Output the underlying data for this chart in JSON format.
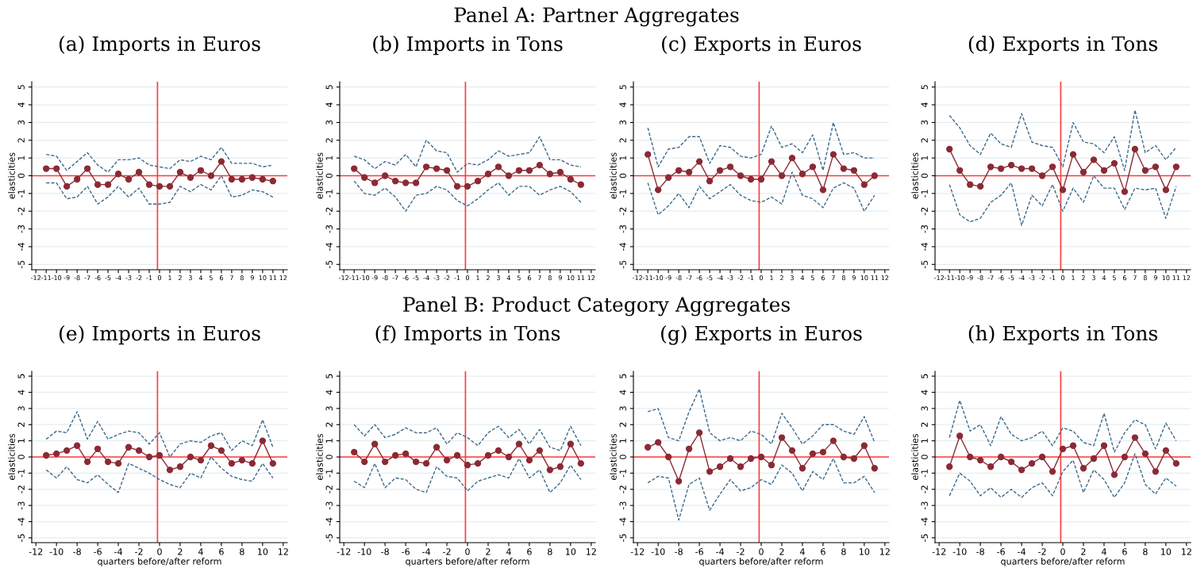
{
  "chart_data": [
    {
      "type": "line",
      "title": "(a) Imports in Euros",
      "ylabel": "elasticities",
      "annotations": [
        "Panel A: Partner Aggregates"
      ],
      "x": [
        -11,
        -10,
        -9,
        -8,
        -7,
        -6,
        -5,
        -4,
        -3,
        -2,
        -1,
        0,
        1,
        2,
        3,
        4,
        5,
        6,
        7,
        8,
        9,
        10,
        11
      ],
      "xlim": [
        -12.4,
        12.4
      ],
      "ylim": [
        -5.3,
        5.3
      ],
      "xticks": [
        -12,
        -11,
        -10,
        -9,
        -8,
        -7,
        -6,
        -5,
        -4,
        -3,
        -2,
        -1,
        0,
        1,
        2,
        3,
        4,
        5,
        6,
        7,
        8,
        9,
        10,
        11,
        12
      ],
      "yticks": [
        -5,
        -4,
        -3,
        -2,
        -1,
        0,
        1,
        2,
        3,
        4,
        5
      ],
      "grid": "y",
      "ref_lines": [
        {
          "axis": "x",
          "value": -0.2,
          "color": "#ff3b3b"
        },
        {
          "axis": "y",
          "value": 0,
          "color": "#ff3b3b"
        }
      ],
      "series": [
        {
          "color": "#8b2a35",
          "marker": "circle",
          "line_style": "solid",
          "values": [
            0.4,
            0.4,
            -0.6,
            -0.2,
            0.4,
            -0.5,
            -0.5,
            0.1,
            -0.2,
            0.2,
            -0.5,
            -0.6,
            -0.6,
            0.2,
            -0.1,
            0.3,
            0,
            0.8,
            -0.2,
            -0.2,
            -0.1,
            -0.2,
            -0.3
          ]
        },
        {
          "color": "#3e6a8a",
          "marker": "none",
          "line_style": "dashed",
          "values": [
            1.2,
            1.1,
            0.3,
            0.8,
            1.3,
            0.6,
            0.2,
            0.9,
            0.9,
            1.0,
            0.6,
            0.5,
            0.4,
            0.9,
            0.8,
            1.1,
            0.9,
            1.6,
            0.7,
            0.7,
            0.7,
            0.5,
            0.6
          ]
        },
        {
          "color": "#3e6a8a",
          "marker": "none",
          "line_style": "dashed",
          "values": [
            -0.4,
            -0.4,
            -1.3,
            -1.2,
            -0.6,
            -1.6,
            -1.2,
            -0.6,
            -1.2,
            -0.7,
            -1.6,
            -1.6,
            -1.5,
            -0.6,
            -0.9,
            -0.5,
            -0.8,
            0,
            -1.2,
            -1.1,
            -0.8,
            -0.9,
            -1.2
          ]
        }
      ]
    },
    {
      "type": "line",
      "title": "(b) Imports in Tons",
      "ylabel": "elasticities",
      "x": [
        -11,
        -10,
        -9,
        -8,
        -7,
        -6,
        -5,
        -4,
        -3,
        -2,
        -1,
        0,
        1,
        2,
        3,
        4,
        5,
        6,
        7,
        8,
        9,
        10,
        11
      ],
      "xlim": [
        -12.4,
        12.4
      ],
      "ylim": [
        -5.3,
        5.3
      ],
      "xticks": [
        -12,
        -11,
        -10,
        -9,
        -8,
        -7,
        -6,
        -5,
        -4,
        -3,
        -2,
        -1,
        0,
        1,
        2,
        3,
        4,
        5,
        6,
        7,
        8,
        9,
        10,
        11,
        12
      ],
      "yticks": [
        -5,
        -4,
        -3,
        -2,
        -1,
        0,
        1,
        2,
        3,
        4,
        5
      ],
      "grid": "y",
      "ref_lines": [
        {
          "axis": "x",
          "value": -0.2,
          "color": "#ff3b3b"
        },
        {
          "axis": "y",
          "value": 0,
          "color": "#ff3b3b"
        }
      ],
      "series": [
        {
          "color": "#8b2a35",
          "marker": "circle",
          "line_style": "solid",
          "values": [
            0.4,
            -0.1,
            -0.4,
            0,
            -0.3,
            -0.4,
            -0.4,
            0.5,
            0.4,
            0.3,
            -0.6,
            -0.6,
            -0.3,
            0.1,
            0.5,
            0,
            0.3,
            0.3,
            0.6,
            0.1,
            0.2,
            -0.2,
            -0.5
          ]
        },
        {
          "color": "#3e6a8a",
          "marker": "none",
          "line_style": "dashed",
          "values": [
            1.1,
            0.9,
            0.4,
            0.8,
            0.6,
            1.2,
            0.5,
            2.0,
            1.4,
            1.3,
            0.2,
            0.7,
            0.6,
            0.9,
            1.4,
            1.1,
            1.2,
            1.3,
            2.2,
            0.9,
            0.9,
            0.6,
            0.5
          ]
        },
        {
          "color": "#3e6a8a",
          "marker": "none",
          "line_style": "dashed",
          "values": [
            -0.3,
            -1.0,
            -1.1,
            -0.7,
            -1.2,
            -2.0,
            -1.1,
            -1.0,
            -0.6,
            -0.8,
            -1.4,
            -1.7,
            -1.3,
            -0.8,
            -0.4,
            -1.1,
            -0.6,
            -0.6,
            -1.1,
            -0.8,
            -0.6,
            -0.9,
            -1.5
          ]
        }
      ]
    },
    {
      "type": "line",
      "title": "(c) Exports in Euros",
      "ylabel": "elasticities",
      "x": [
        -11,
        -10,
        -9,
        -8,
        -7,
        -6,
        -5,
        -4,
        -3,
        -2,
        -1,
        0,
        1,
        2,
        3,
        4,
        5,
        6,
        7,
        8,
        9,
        10,
        11
      ],
      "xlim": [
        -12.4,
        12.4
      ],
      "ylim": [
        -5.3,
        5.3
      ],
      "xticks": [
        -12,
        -11,
        -10,
        -9,
        -8,
        -7,
        -6,
        -5,
        -4,
        -3,
        -2,
        -1,
        0,
        1,
        2,
        3,
        4,
        5,
        6,
        7,
        8,
        9,
        10,
        11,
        12
      ],
      "yticks": [
        -5,
        -4,
        -3,
        -2,
        -1,
        0,
        1,
        2,
        3,
        4,
        5
      ],
      "grid": "y",
      "ref_lines": [
        {
          "axis": "x",
          "value": -0.2,
          "color": "#ff3b3b"
        },
        {
          "axis": "y",
          "value": 0,
          "color": "#ff3b3b"
        }
      ],
      "series": [
        {
          "color": "#8b2a35",
          "marker": "circle",
          "line_style": "solid",
          "values": [
            1.2,
            -0.8,
            -0.1,
            0.3,
            0.2,
            0.8,
            -0.3,
            0.3,
            0.5,
            0,
            -0.2,
            -0.2,
            0.8,
            0,
            1.0,
            0.1,
            0.5,
            -0.8,
            1.2,
            0.4,
            0.3,
            -0.5,
            0
          ]
        },
        {
          "color": "#3e6a8a",
          "marker": "none",
          "line_style": "dashed",
          "values": [
            2.7,
            0.5,
            1.5,
            1.6,
            2.2,
            2.2,
            0.7,
            1.7,
            1.6,
            1.1,
            1.0,
            1.2,
            2.8,
            1.6,
            1.8,
            1.3,
            2.3,
            0.3,
            3.0,
            1.2,
            1.3,
            1.0,
            1.0
          ]
        },
        {
          "color": "#3e6a8a",
          "marker": "none",
          "line_style": "dashed",
          "values": [
            -0.4,
            -2.2,
            -1.7,
            -1.0,
            -1.8,
            -0.6,
            -1.3,
            -0.9,
            -0.5,
            -1.1,
            -1.4,
            -1.5,
            -1.2,
            -1.6,
            0.2,
            -1.1,
            -1.3,
            -1.8,
            -0.7,
            -0.4,
            -0.7,
            -2.0,
            -1.1
          ]
        }
      ]
    },
    {
      "type": "line",
      "title": "(d) Exports in Tons",
      "ylabel": "elasticities",
      "x": [
        -11,
        -10,
        -9,
        -8,
        -7,
        -6,
        -5,
        -4,
        -3,
        -2,
        -1,
        0,
        1,
        2,
        3,
        4,
        5,
        6,
        7,
        8,
        9,
        10,
        11
      ],
      "xlim": [
        -12.4,
        12.4
      ],
      "ylim": [
        -5.3,
        5.3
      ],
      "xticks": [
        -12,
        -11,
        -10,
        -9,
        -8,
        -7,
        -6,
        -5,
        -4,
        -3,
        -2,
        -1,
        0,
        1,
        2,
        3,
        4,
        5,
        6,
        7,
        8,
        9,
        10,
        11,
        12
      ],
      "yticks": [
        -5,
        -4,
        -3,
        -2,
        -1,
        0,
        1,
        2,
        3,
        4,
        5
      ],
      "grid": "y",
      "ref_lines": [
        {
          "axis": "x",
          "value": -0.2,
          "color": "#ff3b3b"
        },
        {
          "axis": "y",
          "value": 0,
          "color": "#ff3b3b"
        }
      ],
      "series": [
        {
          "color": "#8b2a35",
          "marker": "circle",
          "line_style": "solid",
          "values": [
            1.5,
            0.3,
            -0.5,
            -0.6,
            0.5,
            0.4,
            0.6,
            0.4,
            0.4,
            0,
            0.5,
            -0.8,
            1.2,
            0.2,
            0.9,
            0.3,
            0.7,
            -0.9,
            1.5,
            0.3,
            0.5,
            -0.8,
            0.5
          ]
        },
        {
          "color": "#3e6a8a",
          "marker": "none",
          "line_style": "dashed",
          "values": [
            3.4,
            2.7,
            1.7,
            1.2,
            2.4,
            1.8,
            1.6,
            3.5,
            1.9,
            1.7,
            1.6,
            0.5,
            3.0,
            1.9,
            1.8,
            1.3,
            2.2,
            0.3,
            3.7,
            1.3,
            1.7,
            0.9,
            1.6
          ]
        },
        {
          "color": "#3e6a8a",
          "marker": "none",
          "line_style": "dashed",
          "values": [
            -0.5,
            -2.2,
            -2.6,
            -2.4,
            -1.5,
            -1.1,
            -0.4,
            -2.8,
            -1.1,
            -1.7,
            -0.5,
            -2.0,
            -0.7,
            -1.5,
            0,
            -0.7,
            -0.7,
            -1.9,
            -0.7,
            -0.8,
            -0.7,
            -2.4,
            -0.6
          ]
        }
      ]
    },
    {
      "type": "line",
      "title": "(e) Imports in Euros",
      "xlabel": "quarters before/after reform",
      "ylabel": "elasticities",
      "annotations": [
        "Panel B: Product Category Aggregates"
      ],
      "x": [
        -11,
        -10,
        -9,
        -8,
        -7,
        -6,
        -5,
        -4,
        -3,
        -2,
        -1,
        0,
        1,
        2,
        3,
        4,
        5,
        6,
        7,
        8,
        9,
        10,
        11
      ],
      "xlim": [
        -12.4,
        12.4
      ],
      "ylim": [
        -5.3,
        5.3
      ],
      "xticks": [
        -12,
        -10,
        -8,
        -6,
        -4,
        -2,
        0,
        2,
        4,
        6,
        8,
        10,
        12
      ],
      "yticks": [
        -5,
        -4,
        -3,
        -2,
        -1,
        0,
        1,
        2,
        3,
        4,
        5
      ],
      "grid": "y",
      "ref_lines": [
        {
          "axis": "x",
          "value": -0.2,
          "color": "#ff3b3b"
        },
        {
          "axis": "y",
          "value": 0,
          "color": "#ff3b3b"
        }
      ],
      "series": [
        {
          "color": "#8b2a35",
          "marker": "circle",
          "line_style": "solid",
          "values": [
            0.1,
            0.2,
            0.4,
            0.7,
            -0.3,
            0.5,
            -0.3,
            -0.4,
            0.6,
            0.4,
            0,
            0.1,
            -0.8,
            -0.6,
            0,
            -0.2,
            0.7,
            0.4,
            -0.4,
            -0.2,
            -0.4,
            1.0,
            -0.4
          ]
        },
        {
          "color": "#3e6a8a",
          "marker": "none",
          "line_style": "dashed",
          "values": [
            1.1,
            1.6,
            1.5,
            2.8,
            1.1,
            2.2,
            1.1,
            1.4,
            1.6,
            1.5,
            0.8,
            1.5,
            0,
            0.8,
            1.0,
            0.9,
            1.3,
            1.5,
            0.4,
            1.0,
            0.7,
            2.3,
            0.6
          ]
        },
        {
          "color": "#3e6a8a",
          "marker": "none",
          "line_style": "dashed",
          "values": [
            -0.8,
            -1.3,
            -0.6,
            -1.4,
            -1.6,
            -1.1,
            -1.7,
            -2.2,
            -0.4,
            -0.7,
            -1.0,
            -1.4,
            -1.7,
            -1.9,
            -1.0,
            -1.3,
            0,
            -0.7,
            -1.2,
            -1.4,
            -1.5,
            -0.4,
            -1.3
          ]
        }
      ]
    },
    {
      "type": "line",
      "title": "(f) Imports in Tons",
      "xlabel": "quarters before/after reform",
      "ylabel": "elasticities",
      "x": [
        -11,
        -10,
        -9,
        -8,
        -7,
        -6,
        -5,
        -4,
        -3,
        -2,
        -1,
        0,
        1,
        2,
        3,
        4,
        5,
        6,
        7,
        8,
        9,
        10,
        11
      ],
      "xlim": [
        -12.4,
        12.4
      ],
      "ylim": [
        -5.3,
        5.3
      ],
      "xticks": [
        -12,
        -10,
        -8,
        -6,
        -4,
        -2,
        0,
        2,
        4,
        6,
        8,
        10,
        12
      ],
      "yticks": [
        -5,
        -4,
        -3,
        -2,
        -1,
        0,
        1,
        2,
        3,
        4,
        5
      ],
      "grid": "y",
      "ref_lines": [
        {
          "axis": "x",
          "value": -0.2,
          "color": "#ff3b3b"
        },
        {
          "axis": "y",
          "value": 0,
          "color": "#ff3b3b"
        }
      ],
      "series": [
        {
          "color": "#8b2a35",
          "marker": "circle",
          "line_style": "solid",
          "values": [
            0.3,
            -0.3,
            0.8,
            -0.3,
            0.1,
            0.2,
            -0.3,
            -0.4,
            0.6,
            -0.2,
            0.1,
            -0.5,
            -0.4,
            0.1,
            0.4,
            0,
            0.8,
            -0.2,
            0.4,
            -0.8,
            -0.6,
            0.8,
            -0.4
          ]
        },
        {
          "color": "#3e6a8a",
          "marker": "none",
          "line_style": "dashed",
          "values": [
            2.0,
            1.3,
            2.0,
            1.2,
            1.4,
            1.8,
            1.5,
            1.5,
            1.8,
            0.8,
            1.5,
            1.2,
            0.7,
            1.5,
            1.9,
            1.2,
            1.7,
            0.8,
            1.7,
            0.6,
            0.4,
            1.9,
            0.7
          ]
        },
        {
          "color": "#3e6a8a",
          "marker": "none",
          "line_style": "dashed",
          "values": [
            -1.5,
            -1.9,
            -0.4,
            -1.9,
            -1.3,
            -1.4,
            -2.0,
            -2.2,
            -0.6,
            -1.2,
            -1.3,
            -2.1,
            -1.5,
            -1.3,
            -1.1,
            -1.3,
            -0.1,
            -1.3,
            -0.8,
            -2.2,
            -1.6,
            -0.5,
            -1.4
          ]
        }
      ]
    },
    {
      "type": "line",
      "title": "(g) Exports in Euros",
      "xlabel": "quarters before/after reform",
      "ylabel": "elasticities",
      "x": [
        -11,
        -10,
        -9,
        -8,
        -7,
        -6,
        -5,
        -4,
        -3,
        -2,
        -1,
        0,
        1,
        2,
        3,
        4,
        5,
        6,
        7,
        8,
        9,
        10,
        11
      ],
      "xlim": [
        -12.4,
        12.4
      ],
      "ylim": [
        -5.3,
        5.3
      ],
      "xticks": [
        -12,
        -10,
        -8,
        -6,
        -4,
        -2,
        0,
        2,
        4,
        6,
        8,
        10,
        12
      ],
      "yticks": [
        -5,
        -4,
        -3,
        -2,
        -1,
        0,
        1,
        2,
        3,
        4,
        5
      ],
      "grid": "y",
      "ref_lines": [
        {
          "axis": "x",
          "value": -0.2,
          "color": "#ff3b3b"
        },
        {
          "axis": "y",
          "value": 0,
          "color": "#ff3b3b"
        }
      ],
      "series": [
        {
          "color": "#8b2a35",
          "marker": "circle",
          "line_style": "solid",
          "values": [
            0.6,
            0.9,
            0,
            -1.5,
            0.5,
            1.5,
            -0.9,
            -0.6,
            -0.1,
            -0.6,
            -0.1,
            0,
            -0.5,
            1.2,
            0.4,
            -0.7,
            0.2,
            0.3,
            1.0,
            0,
            -0.1,
            0.7,
            -0.7
          ]
        },
        {
          "color": "#3e6a8a",
          "marker": "none",
          "line_style": "dashed",
          "values": [
            2.8,
            3.0,
            1.2,
            1.0,
            2.8,
            4.2,
            1.5,
            1.0,
            1.2,
            1.0,
            1.6,
            1.4,
            0.8,
            2.7,
            1.8,
            0.8,
            1.3,
            2.0,
            2.0,
            1.6,
            1.4,
            2.5,
            0.9
          ]
        },
        {
          "color": "#3e6a8a",
          "marker": "none",
          "line_style": "dashed",
          "values": [
            -1.6,
            -1.2,
            -1.3,
            -3.9,
            -1.7,
            -1.3,
            -3.3,
            -2.3,
            -1.4,
            -2.1,
            -1.9,
            -1.4,
            -1.7,
            -0.5,
            -1.0,
            -2.1,
            -0.9,
            -1.4,
            -0.1,
            -1.6,
            -1.6,
            -1.2,
            -2.2
          ]
        }
      ]
    },
    {
      "type": "line",
      "title": "(h) Exports in Tons",
      "xlabel": "quarters before/after reform",
      "ylabel": "elasticities",
      "x": [
        -11,
        -10,
        -9,
        -8,
        -7,
        -6,
        -5,
        -4,
        -3,
        -2,
        -1,
        0,
        1,
        2,
        3,
        4,
        5,
        6,
        7,
        8,
        9,
        10,
        11
      ],
      "xlim": [
        -12.4,
        12.4
      ],
      "ylim": [
        -5.3,
        5.3
      ],
      "xticks": [
        -12,
        -10,
        -8,
        -6,
        -4,
        -2,
        0,
        2,
        4,
        6,
        8,
        10,
        12
      ],
      "yticks": [
        -5,
        -4,
        -3,
        -2,
        -1,
        0,
        1,
        2,
        3,
        4,
        5
      ],
      "grid": "y",
      "ref_lines": [
        {
          "axis": "x",
          "value": -0.2,
          "color": "#ff3b3b"
        },
        {
          "axis": "y",
          "value": 0,
          "color": "#ff3b3b"
        }
      ],
      "series": [
        {
          "color": "#8b2a35",
          "marker": "circle",
          "line_style": "solid",
          "values": [
            -0.6,
            1.3,
            0,
            -0.2,
            -0.6,
            0,
            -0.3,
            -0.8,
            -0.4,
            0,
            -0.9,
            0.5,
            0.7,
            -0.7,
            -0.1,
            0.7,
            -1.1,
            0,
            1.2,
            0.2,
            -0.9,
            0.4,
            -0.4
          ]
        },
        {
          "color": "#3e6a8a",
          "marker": "none",
          "line_style": "dashed",
          "values": [
            1.2,
            3.5,
            1.6,
            2.0,
            0.7,
            2.5,
            1.4,
            1.0,
            1.2,
            1.6,
            0.7,
            1.8,
            1.6,
            0.9,
            0.7,
            2.7,
            0.3,
            1.5,
            2.3,
            2.0,
            0.5,
            2.1,
            1.0
          ]
        },
        {
          "color": "#3e6a8a",
          "marker": "none",
          "line_style": "dashed",
          "values": [
            -2.4,
            -1.0,
            -1.5,
            -2.4,
            -1.9,
            -2.5,
            -2.0,
            -2.5,
            -1.9,
            -1.6,
            -2.4,
            -0.9,
            -0.2,
            -2.2,
            -0.8,
            -1.4,
            -2.5,
            -1.6,
            0.2,
            -1.7,
            -2.3,
            -1.3,
            -1.8
          ]
        }
      ]
    }
  ]
}
